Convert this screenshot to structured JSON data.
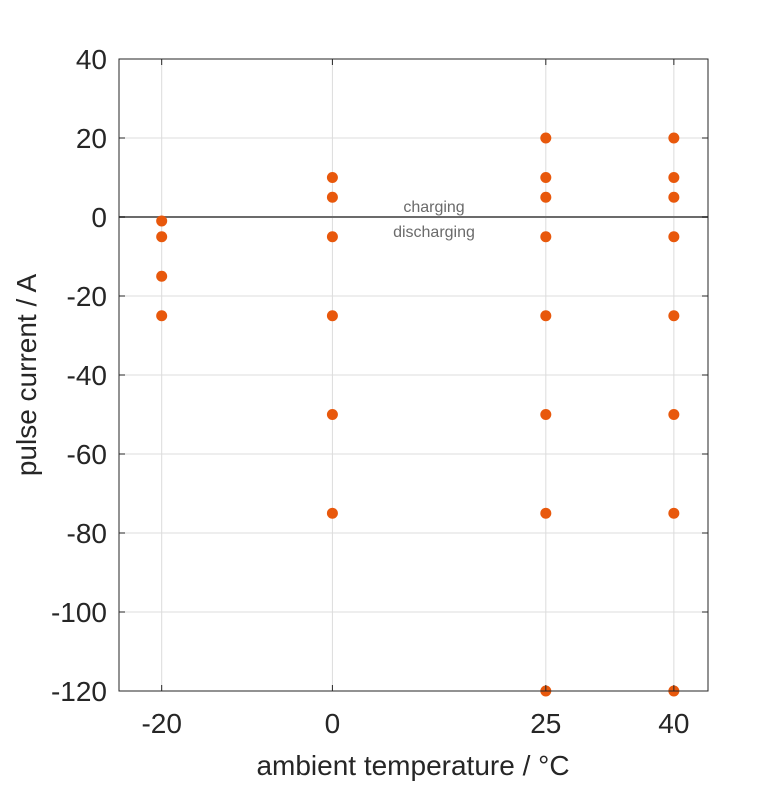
{
  "chart_data": {
    "type": "scatter",
    "xlabel": "ambient temperature / °C",
    "ylabel": "pulse current / A",
    "xlim": [
      -25,
      44
    ],
    "ylim": [
      -120,
      40
    ],
    "xticks": [
      -20,
      0,
      25,
      40
    ],
    "yticks": [
      40,
      20,
      0,
      -20,
      -40,
      -60,
      -80,
      -100,
      -120
    ],
    "grid": true,
    "marker_color": "#e8580c",
    "reference_line": {
      "y": 0,
      "color": "#6b6b6b"
    },
    "annotations": {
      "above": "charging",
      "below": "discharging"
    },
    "points": [
      {
        "x": -20,
        "y": -1
      },
      {
        "x": -20,
        "y": -5
      },
      {
        "x": -20,
        "y": -15
      },
      {
        "x": -20,
        "y": -25
      },
      {
        "x": 0,
        "y": 10
      },
      {
        "x": 0,
        "y": 5
      },
      {
        "x": 0,
        "y": -5
      },
      {
        "x": 0,
        "y": -25
      },
      {
        "x": 0,
        "y": -50
      },
      {
        "x": 0,
        "y": -75
      },
      {
        "x": 25,
        "y": 20
      },
      {
        "x": 25,
        "y": 10
      },
      {
        "x": 25,
        "y": 5
      },
      {
        "x": 25,
        "y": -5
      },
      {
        "x": 25,
        "y": -25
      },
      {
        "x": 25,
        "y": -50
      },
      {
        "x": 25,
        "y": -75
      },
      {
        "x": 25,
        "y": -120
      },
      {
        "x": 40,
        "y": 20
      },
      {
        "x": 40,
        "y": 10
      },
      {
        "x": 40,
        "y": 5
      },
      {
        "x": 40,
        "y": -5
      },
      {
        "x": 40,
        "y": -25
      },
      {
        "x": 40,
        "y": -50
      },
      {
        "x": 40,
        "y": -75
      },
      {
        "x": 40,
        "y": -120
      }
    ]
  }
}
